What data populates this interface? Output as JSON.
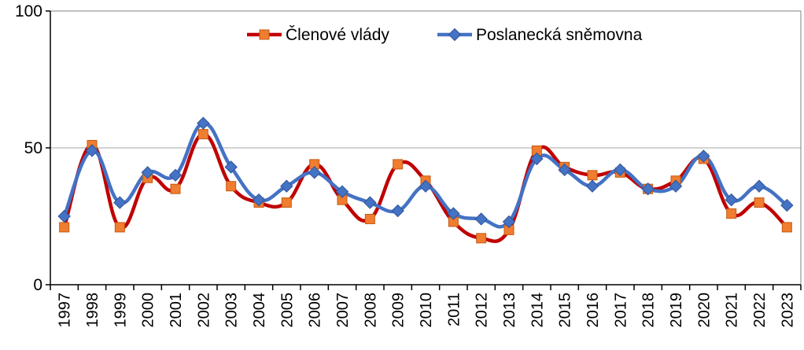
{
  "chart_data": {
    "type": "line",
    "title": "",
    "xlabel": "",
    "ylabel": "",
    "categories": [
      "1997",
      "1998",
      "1999",
      "2000",
      "2001",
      "2002",
      "2003",
      "2004",
      "2005",
      "2006",
      "2007",
      "2008",
      "2009",
      "2010",
      "2011",
      "2012",
      "2013",
      "2014",
      "2015",
      "2016",
      "2017",
      "2018",
      "2019",
      "2020",
      "2021",
      "2022",
      "2023"
    ],
    "ylim": [
      0,
      100
    ],
    "yticks": [
      "0",
      "50",
      "100"
    ],
    "grid": "horizontal at 50",
    "legend_position": "top-center",
    "series": [
      {
        "name": "Členové vlády",
        "color": "#c00000",
        "marker": "square",
        "marker_color": "#f07d30",
        "values": [
          21,
          51,
          21,
          39,
          35,
          55,
          36,
          30,
          30,
          44,
          31,
          24,
          44,
          38,
          23,
          17,
          20,
          49,
          43,
          40,
          41,
          35,
          38,
          46,
          26,
          30,
          21
        ]
      },
      {
        "name": "Poslanecká sněmovna",
        "color": "#4472c4",
        "marker": "diamond",
        "marker_color": "#4472c4",
        "values": [
          25,
          49,
          30,
          41,
          40,
          59,
          43,
          31,
          36,
          41,
          34,
          30,
          27,
          36,
          26,
          24,
          23,
          46,
          42,
          36,
          42,
          35,
          36,
          47,
          31,
          36,
          29
        ]
      }
    ]
  }
}
